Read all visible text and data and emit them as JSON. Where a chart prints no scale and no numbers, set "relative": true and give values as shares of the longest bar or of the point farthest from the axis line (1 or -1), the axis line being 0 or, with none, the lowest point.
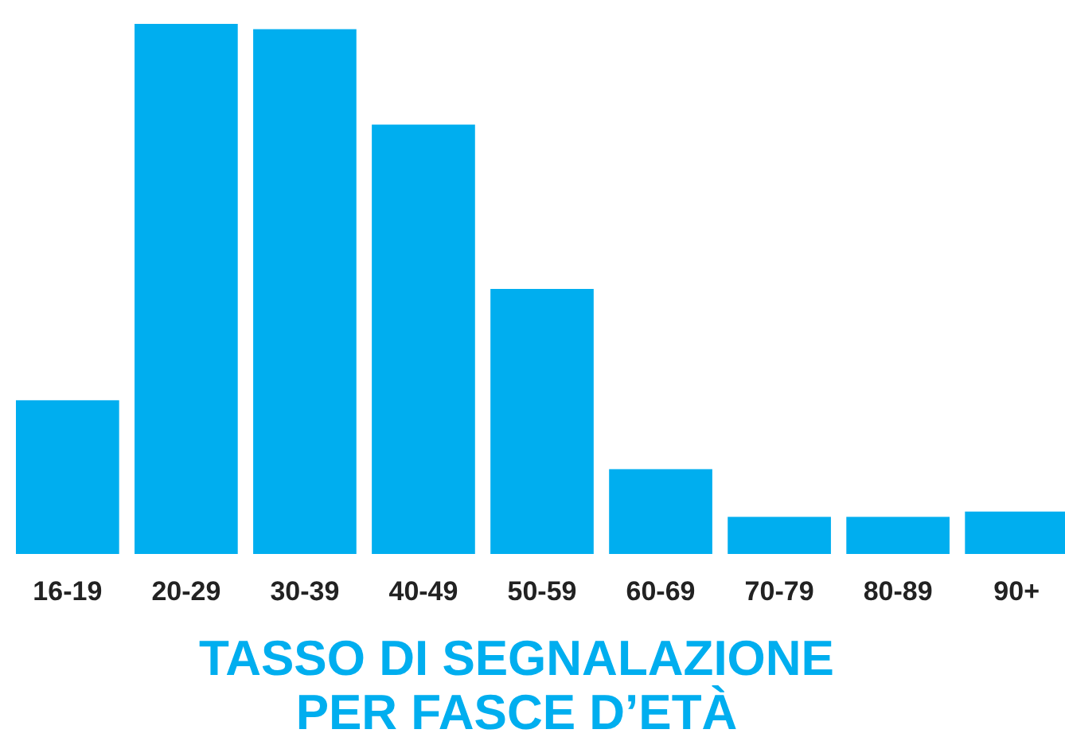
{
  "chart_data": {
    "type": "bar",
    "title": "TASSO DI SEGNALAZIONE PER FASCE D’ETÀ",
    "categories": [
      "16-19",
      "20-29",
      "30-39",
      "40-49",
      "50-59",
      "60-69",
      "70-79",
      "80-89",
      "90+"
    ],
    "values": [
      0.29,
      1,
      0.99,
      0.81,
      0.5,
      0.16,
      0.07,
      0.07,
      0.08
    ],
    "color": "#00aeef",
    "relative": true
  }
}
